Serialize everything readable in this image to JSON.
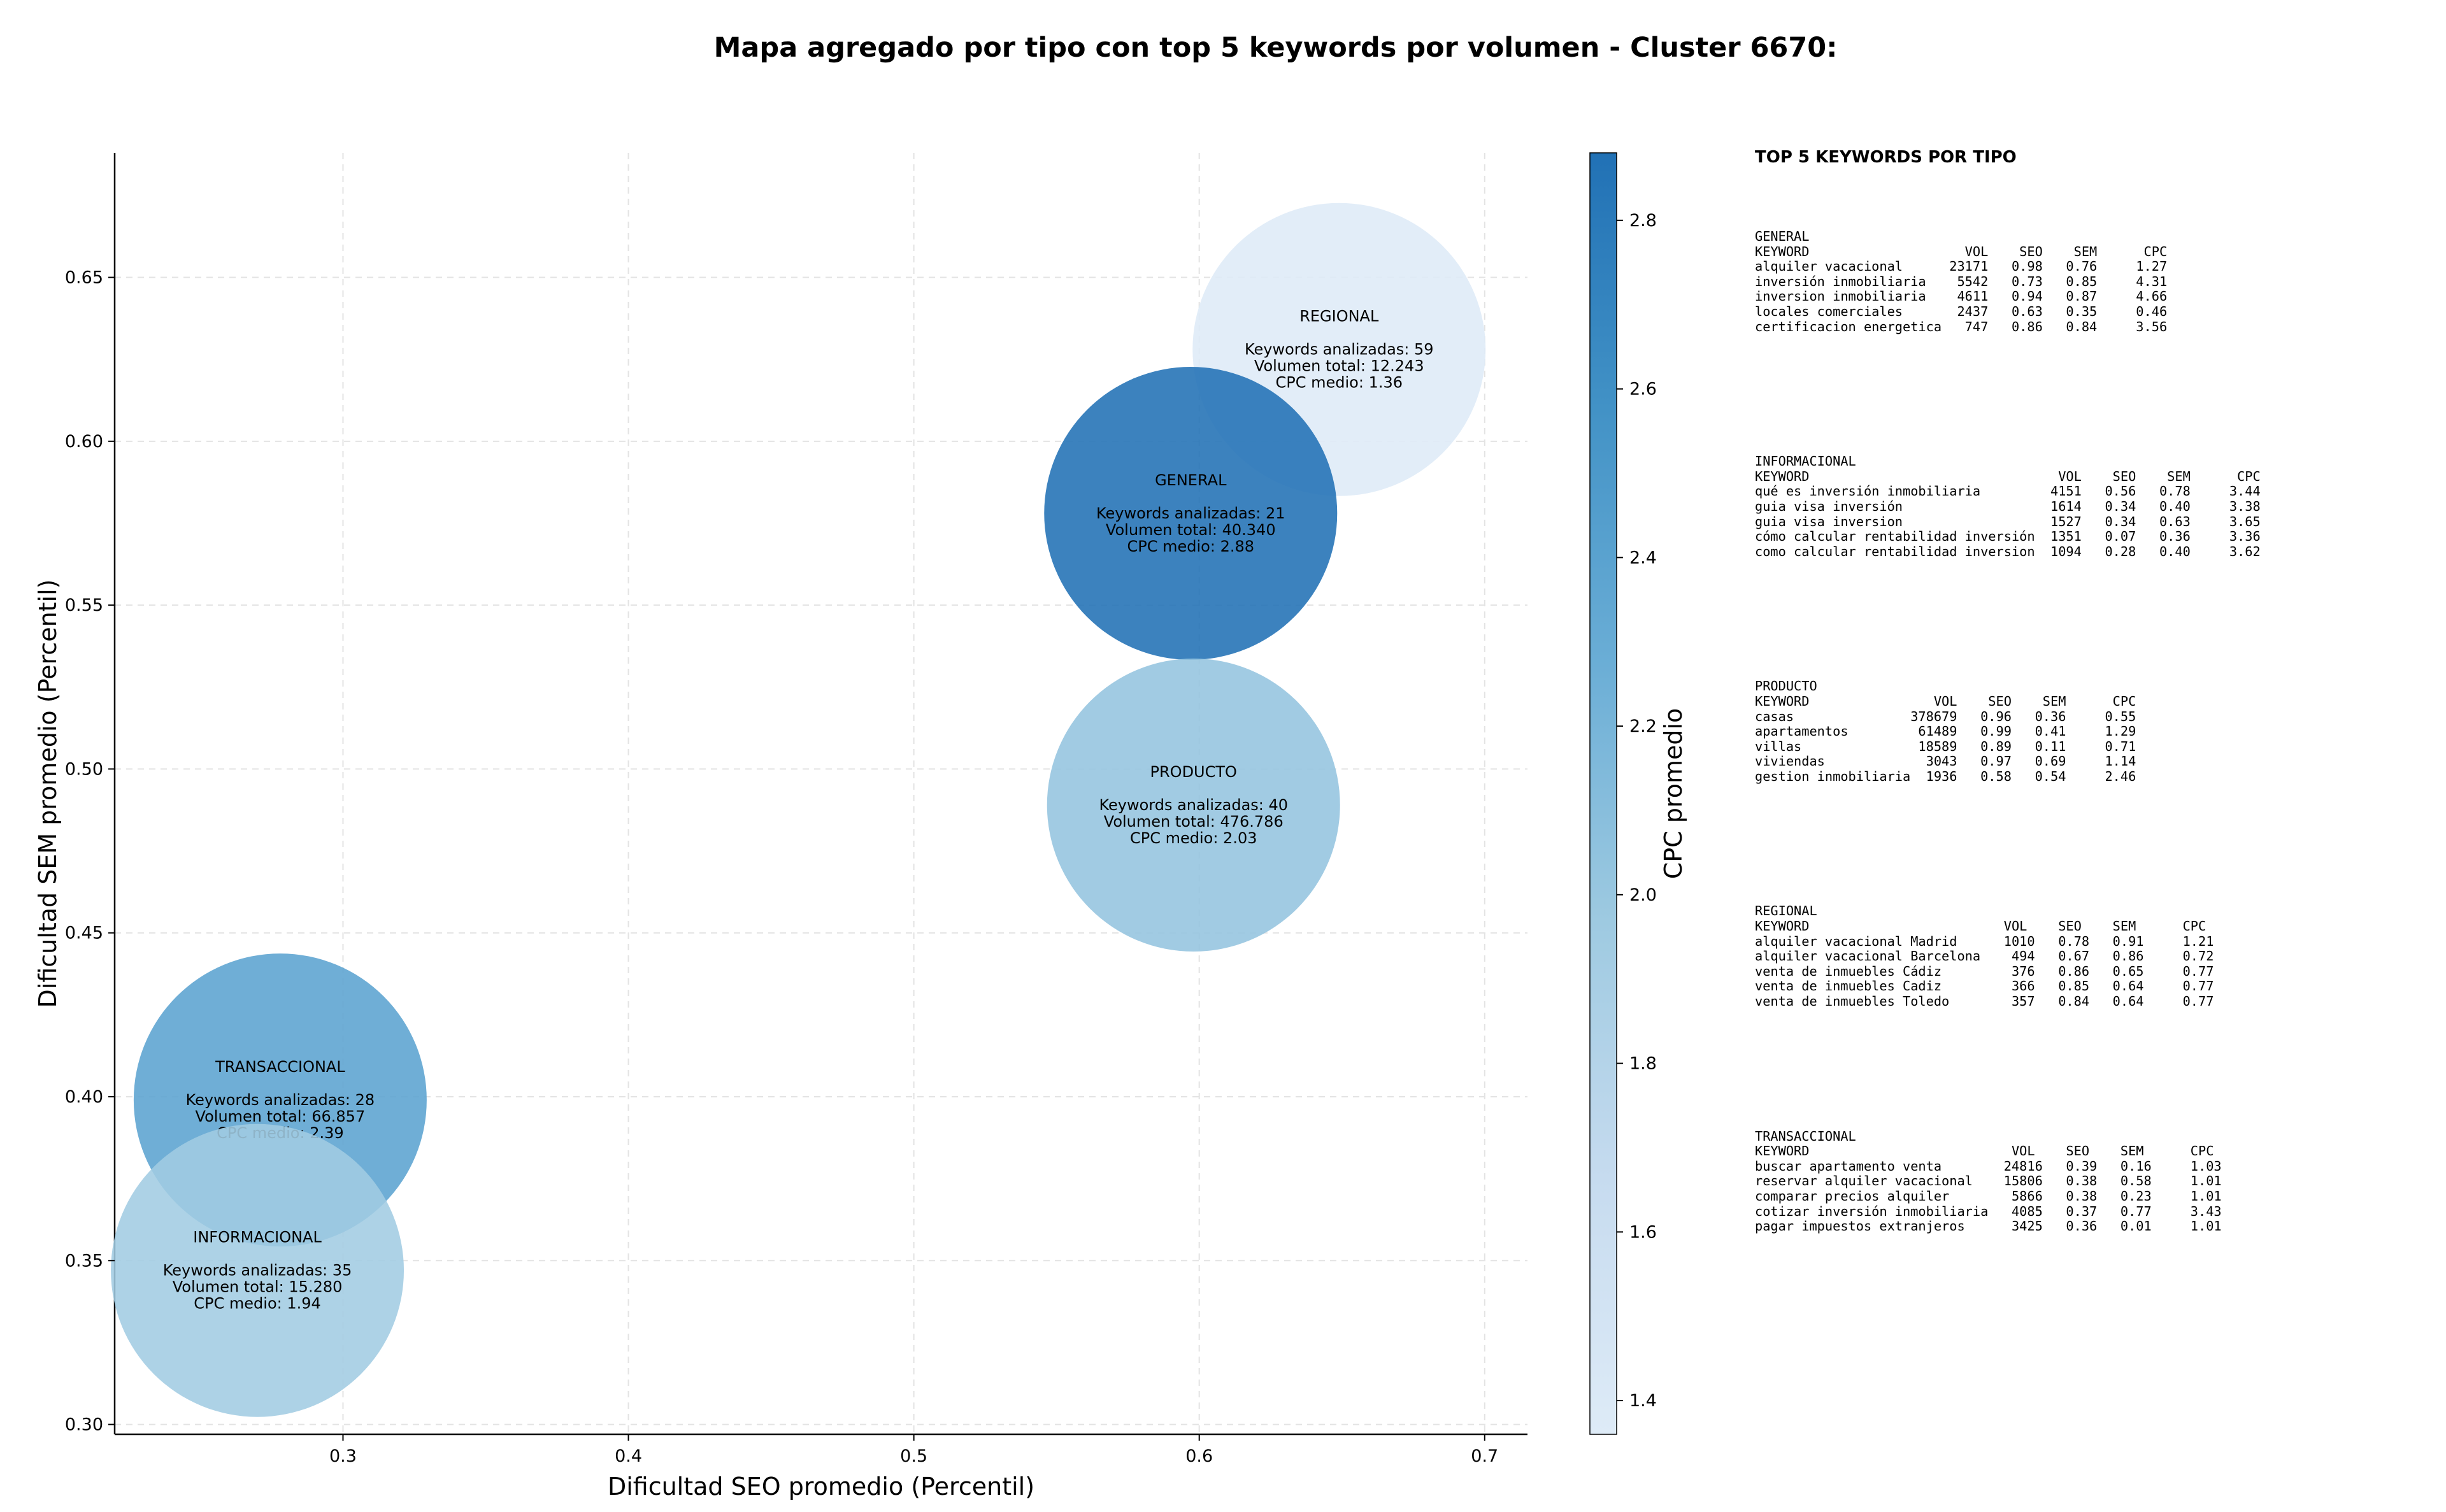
{
  "chart_data": {
    "type": "scatter",
    "title": "Mapa agregado por tipo con top 5 keywords por volumen - Cluster 6670:",
    "xlabel": "Dificultad SEO promedio (Percentil)",
    "ylabel": "Dificultad SEM promedio (Percentil)",
    "xlim": [
      0.22,
      0.715
    ],
    "ylim": [
      0.297,
      0.688
    ],
    "xticks": [
      0.3,
      0.4,
      0.5,
      0.6,
      0.7
    ],
    "xtick_labels": [
      "0.3",
      "0.4",
      "0.5",
      "0.6",
      "0.7"
    ],
    "yticks": [
      0.3,
      0.35,
      0.4,
      0.45,
      0.5,
      0.55,
      0.6,
      0.65
    ],
    "ytick_labels": [
      "0.30",
      "0.35",
      "0.40",
      "0.45",
      "0.50",
      "0.55",
      "0.60",
      "0.65"
    ],
    "grid": true,
    "colorbar": {
      "label": "CPC promedio",
      "range": [
        1.36,
        2.88
      ],
      "ticks": [
        1.4,
        1.6,
        1.8,
        2.0,
        2.2,
        2.4,
        2.6,
        2.8
      ],
      "tick_labels": [
        "1.4",
        "1.6",
        "1.8",
        "2.0",
        "2.2",
        "2.4",
        "2.6",
        "2.8"
      ],
      "colormap": [
        "#deebf7",
        "#c6dbef",
        "#9ecae1",
        "#6baed6",
        "#4292c6",
        "#2171b5"
      ]
    },
    "points": [
      {
        "name": "REGIONAL",
        "x": 0.649,
        "y": 0.628,
        "cpc": 1.36,
        "lines": [
          "REGIONAL",
          "",
          "Keywords analizadas: 59",
          "Volumen total: 12.243",
          "CPC medio: 1.36"
        ]
      },
      {
        "name": "GENERAL",
        "x": 0.597,
        "y": 0.578,
        "cpc": 2.88,
        "lines": [
          "GENERAL",
          "",
          "Keywords analizadas: 21",
          "Volumen total: 40.340",
          "CPC medio: 2.88"
        ]
      },
      {
        "name": "PRODUCTO",
        "x": 0.598,
        "y": 0.489,
        "cpc": 2.03,
        "lines": [
          "PRODUCTO",
          "",
          "Keywords analizadas: 40",
          "Volumen total: 476.786",
          "CPC medio: 2.03"
        ]
      },
      {
        "name": "TRANSACCIONAL",
        "x": 0.278,
        "y": 0.399,
        "cpc": 2.39,
        "lines": [
          "TRANSACCIONAL",
          "",
          "Keywords analizadas: 28",
          "Volumen total: 66.857",
          "CPC medio: 2.39"
        ]
      },
      {
        "name": "INFORMACIONAL",
        "x": 0.27,
        "y": 0.347,
        "cpc": 1.94,
        "lines": [
          "INFORMACIONAL",
          "",
          "Keywords analizadas: 35",
          "Volumen total: 15.280",
          "CPC medio: 1.94"
        ]
      }
    ]
  },
  "side_panel": {
    "title": "TOP 5 KEYWORDS POR TIPO",
    "blocks": [
      {
        "text": "GENERAL\nKEYWORD                    VOL    SEO    SEM      CPC\nalquiler vacacional      23171   0.98   0.76     1.27\ninversión inmobiliaria    5542   0.73   0.85     4.31\ninversion inmobiliaria    4611   0.94   0.87     4.66\nlocales comerciales       2437   0.63   0.35     0.46\ncertificacion energetica   747   0.86   0.84     3.56"
      },
      {
        "text": "INFORMACIONAL\nKEYWORD                                VOL    SEO    SEM      CPC\nqué es inversión inmobiliaria         4151   0.56   0.78     3.44\nguia visa inversión                   1614   0.34   0.40     3.38\nguia visa inversion                   1527   0.34   0.63     3.65\ncómo calcular rentabilidad inversión  1351   0.07   0.36     3.36\ncomo calcular rentabilidad inversion  1094   0.28   0.40     3.62"
      },
      {
        "text": "PRODUCTO\nKEYWORD                VOL    SEO    SEM      CPC\ncasas               378679   0.96   0.36     0.55\napartamentos         61489   0.99   0.41     1.29\nvillas               18589   0.89   0.11     0.71\nviviendas             3043   0.97   0.69     1.14\ngestion inmobiliaria  1936   0.58   0.54     2.46"
      },
      {
        "text": "REGIONAL\nKEYWORD                         VOL    SEO    SEM      CPC\nalquiler vacacional Madrid      1010   0.78   0.91     1.21\nalquiler vacacional Barcelona    494   0.67   0.86     0.72\nventa de inmuebles Cádiz         376   0.86   0.65     0.77\nventa de inmuebles Cadiz         366   0.85   0.64     0.77\nventa de inmuebles Toledo        357   0.84   0.64     0.77"
      },
      {
        "text": "TRANSACCIONAL\nKEYWORD                          VOL    SEO    SEM      CPC\nbuscar apartamento venta        24816   0.39   0.16     1.03\nreservar alquiler vacacional    15806   0.38   0.58     1.01\ncomparar precios alquiler        5866   0.38   0.23     1.01\ncotizar inversión inmobiliaria   4085   0.37   0.77     3.43\npagar impuestos extranjeros      3425   0.36   0.01     1.01"
      }
    ]
  }
}
